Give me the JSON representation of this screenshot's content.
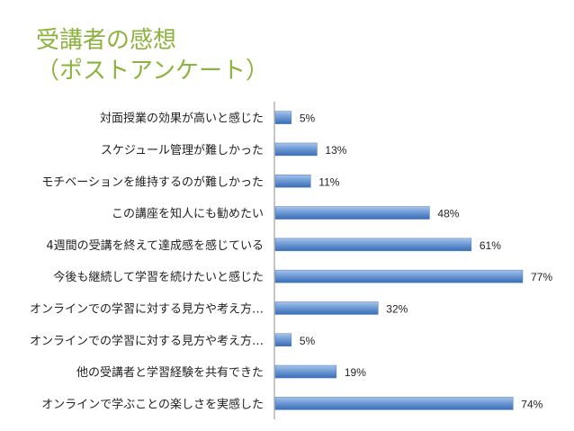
{
  "title": {
    "line1": "受講者の感想",
    "line2": "（ポストアンケート）",
    "color": "#8db33f"
  },
  "chart_data": {
    "type": "bar",
    "orientation": "horizontal",
    "categories": [
      "対面授業の効果が高いと感じた",
      "スケジュール管理が難しかった",
      "モチベーションを維持するのが難しかった",
      "この講座を知人にも勧めたい",
      "4週間の受講を終えて達成感を感じている",
      "今後も継続して学習を続けたいと感じた",
      "オンラインでの学習に対する見方や考え方…",
      "オンラインでの学習に対する見方や考え方…",
      "他の受講者と学習経験を共有できた",
      "オンラインで学ぶことの楽しさを実感した"
    ],
    "values": [
      5,
      13,
      11,
      48,
      61,
      77,
      32,
      5,
      19,
      74
    ],
    "value_labels": [
      "5%",
      "13%",
      "11%",
      "48%",
      "61%",
      "77%",
      "32%",
      "5%",
      "19%",
      "74%"
    ],
    "xlim": [
      0,
      100
    ],
    "bar_color": "#4f81bd",
    "grid": false,
    "legend": "none"
  }
}
